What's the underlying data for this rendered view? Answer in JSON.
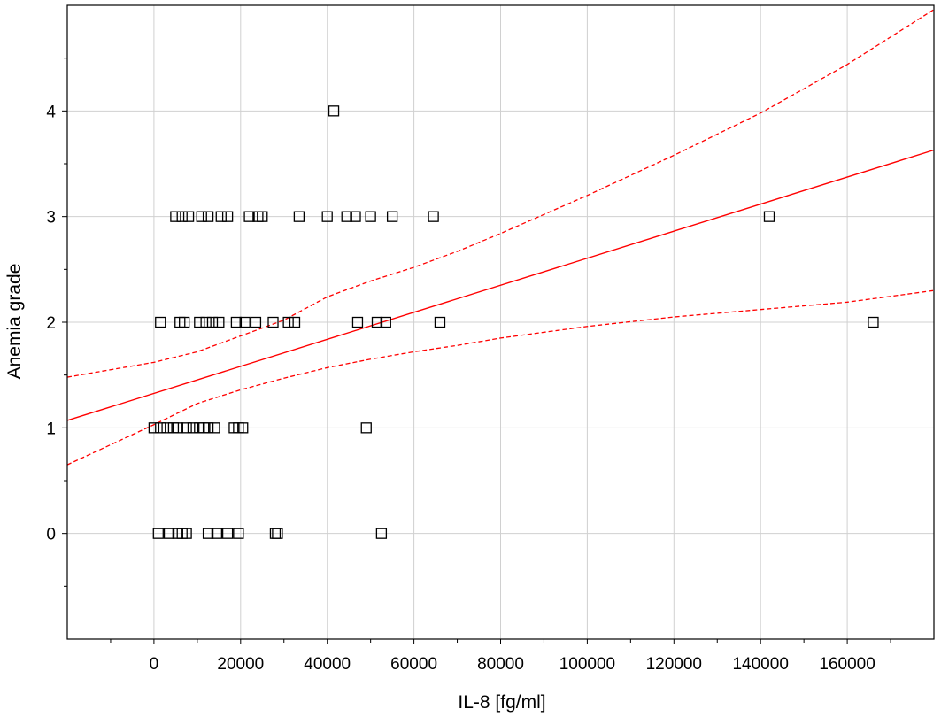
{
  "chart_data": {
    "type": "scatter",
    "title": "",
    "xlabel": "IL-8 [fg/ml]",
    "ylabel": "Anemia grade",
    "xlim": [
      -20000,
      180000
    ],
    "ylim": [
      -1,
      5
    ],
    "xticks": [
      0,
      20000,
      40000,
      60000,
      80000,
      100000,
      120000,
      140000,
      160000
    ],
    "yticks": [
      0,
      1,
      2,
      3,
      4
    ],
    "grid": true,
    "colors": {
      "points": "#000000",
      "fit": "#ff0000",
      "grid": "#d0d0d0"
    },
    "points": [
      {
        "x": 41500,
        "y": 4
      },
      {
        "x": 5000,
        "y": 3
      },
      {
        "x": 6500,
        "y": 3
      },
      {
        "x": 8000,
        "y": 3
      },
      {
        "x": 11000,
        "y": 3
      },
      {
        "x": 12500,
        "y": 3
      },
      {
        "x": 15500,
        "y": 3
      },
      {
        "x": 17000,
        "y": 3
      },
      {
        "x": 22000,
        "y": 3
      },
      {
        "x": 24000,
        "y": 3
      },
      {
        "x": 25000,
        "y": 3
      },
      {
        "x": 33500,
        "y": 3
      },
      {
        "x": 40000,
        "y": 3
      },
      {
        "x": 44500,
        "y": 3
      },
      {
        "x": 46500,
        "y": 3
      },
      {
        "x": 50000,
        "y": 3
      },
      {
        "x": 55000,
        "y": 3
      },
      {
        "x": 64500,
        "y": 3
      },
      {
        "x": 142000,
        "y": 3
      },
      {
        "x": 1500,
        "y": 2
      },
      {
        "x": 6000,
        "y": 2
      },
      {
        "x": 7000,
        "y": 2
      },
      {
        "x": 10500,
        "y": 2
      },
      {
        "x": 12000,
        "y": 2
      },
      {
        "x": 13500,
        "y": 2
      },
      {
        "x": 15000,
        "y": 2
      },
      {
        "x": 19000,
        "y": 2
      },
      {
        "x": 21000,
        "y": 2
      },
      {
        "x": 23500,
        "y": 2
      },
      {
        "x": 27500,
        "y": 2
      },
      {
        "x": 31000,
        "y": 2
      },
      {
        "x": 32500,
        "y": 2
      },
      {
        "x": 47000,
        "y": 2
      },
      {
        "x": 51500,
        "y": 2
      },
      {
        "x": 53500,
        "y": 2
      },
      {
        "x": 66000,
        "y": 2
      },
      {
        "x": 166000,
        "y": 2
      },
      {
        "x": 0,
        "y": 1
      },
      {
        "x": 1500,
        "y": 1
      },
      {
        "x": 3000,
        "y": 1
      },
      {
        "x": 4500,
        "y": 1
      },
      {
        "x": 5500,
        "y": 1
      },
      {
        "x": 7500,
        "y": 1
      },
      {
        "x": 9000,
        "y": 1
      },
      {
        "x": 10500,
        "y": 1
      },
      {
        "x": 11500,
        "y": 1
      },
      {
        "x": 12500,
        "y": 1
      },
      {
        "x": 14000,
        "y": 1
      },
      {
        "x": 18500,
        "y": 1
      },
      {
        "x": 19500,
        "y": 1
      },
      {
        "x": 20500,
        "y": 1
      },
      {
        "x": 49000,
        "y": 1
      },
      {
        "x": 1000,
        "y": 0
      },
      {
        "x": 3500,
        "y": 0
      },
      {
        "x": 5500,
        "y": 0
      },
      {
        "x": 6500,
        "y": 0
      },
      {
        "x": 7500,
        "y": 0
      },
      {
        "x": 12500,
        "y": 0
      },
      {
        "x": 14500,
        "y": 0
      },
      {
        "x": 17000,
        "y": 0
      },
      {
        "x": 19500,
        "y": 0
      },
      {
        "x": 28000,
        "y": 0
      },
      {
        "x": 28500,
        "y": 0
      },
      {
        "x": 52500,
        "y": 0
      }
    ],
    "fit_line": {
      "x": [
        -20000,
        180000
      ],
      "y": [
        1.07,
        3.63
      ]
    },
    "confidence_band": {
      "x": [
        -20000,
        0,
        10000,
        20000,
        30000,
        40000,
        50000,
        60000,
        70000,
        80000,
        100000,
        120000,
        140000,
        160000,
        180000
      ],
      "upper": [
        1.48,
        1.62,
        1.72,
        1.87,
        2.02,
        2.24,
        2.39,
        2.52,
        2.67,
        2.84,
        3.2,
        3.58,
        3.98,
        4.44,
        4.96
      ],
      "lower": [
        0.65,
        1.03,
        1.23,
        1.36,
        1.47,
        1.57,
        1.65,
        1.72,
        1.78,
        1.85,
        1.96,
        2.05,
        2.12,
        2.19,
        2.3
      ]
    }
  }
}
